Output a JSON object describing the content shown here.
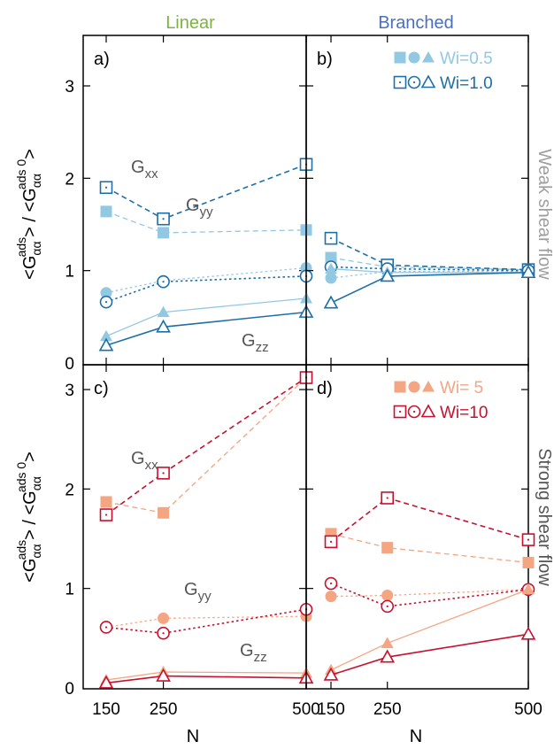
{
  "column_titles": [
    {
      "text": "Linear",
      "color": "#7cb342"
    },
    {
      "text": "Branched",
      "color": "#4a6fc1"
    }
  ],
  "row_titles": [
    {
      "text": "Weak shear flow",
      "color": "#9e9e9e"
    },
    {
      "text": "Strong shear flow",
      "color": "#555555"
    }
  ],
  "ylabel": {
    "main": "<G",
    "sup": "ads",
    "sub": "αα",
    "mid": "> / <G",
    "sup2": "ads 0",
    "sub2": "αα",
    "end": ">"
  },
  "xlabel": "N",
  "xticks": [
    150,
    250,
    500
  ],
  "yticks": [
    0,
    1,
    2,
    3
  ],
  "legends": [
    {
      "filled_label": "Wi=0.5",
      "open_label": "Wi=1.0"
    },
    {
      "filled_label": "Wi= 5",
      "open_label": "Wi=10"
    }
  ],
  "chart_data": [
    {
      "panel": "a)",
      "type": "line",
      "xlim": [
        100,
        550
      ],
      "ylim": [
        0,
        3.5
      ],
      "x": [
        150,
        250,
        500
      ],
      "annotations": [
        {
          "text": "G",
          "sub": "xx"
        },
        {
          "text": "G",
          "sub": "yy"
        },
        {
          "text": "G",
          "sub": "zz"
        }
      ],
      "series": [
        {
          "label": "Wi=0.5",
          "component": "xx",
          "style": "filled",
          "color": "#93c8e2",
          "values": [
            1.64,
            1.41,
            1.44
          ]
        },
        {
          "label": "Wi=1.0",
          "component": "xx",
          "style": "open",
          "color": "#1e6fa8",
          "values": [
            1.9,
            1.56,
            2.15
          ]
        },
        {
          "label": "Wi=0.5",
          "component": "yy",
          "style": "filled",
          "color": "#93c8e2",
          "values": [
            0.76,
            0.89,
            1.03
          ]
        },
        {
          "label": "Wi=1.0",
          "component": "yy",
          "style": "open",
          "color": "#1e6fa8",
          "values": [
            0.66,
            0.88,
            0.94
          ]
        },
        {
          "label": "Wi=0.5",
          "component": "zz",
          "style": "filled",
          "color": "#93c8e2",
          "values": [
            0.29,
            0.55,
            0.7
          ]
        },
        {
          "label": "Wi=1.0",
          "component": "zz",
          "style": "open",
          "color": "#1e6fa8",
          "values": [
            0.19,
            0.39,
            0.55
          ]
        }
      ]
    },
    {
      "panel": "b)",
      "type": "line",
      "xlim": [
        100,
        550
      ],
      "ylim": [
        0,
        3.5
      ],
      "x": [
        150,
        250,
        500
      ],
      "series": [
        {
          "label": "Wi=0.5",
          "component": "xx",
          "style": "filled",
          "color": "#93c8e2",
          "values": [
            1.14,
            1.04,
            1.01
          ]
        },
        {
          "label": "Wi=1.0",
          "component": "xx",
          "style": "open",
          "color": "#1e6fa8",
          "values": [
            1.35,
            1.06,
            1.01
          ]
        },
        {
          "label": "Wi=0.5",
          "component": "yy",
          "style": "filled",
          "color": "#93c8e2",
          "values": [
            0.92,
            0.99,
            0.99
          ]
        },
        {
          "label": "Wi=1.0",
          "component": "yy",
          "style": "open",
          "color": "#1e6fa8",
          "values": [
            1.04,
            1.02,
            1.0
          ]
        },
        {
          "label": "Wi=0.5",
          "component": "zz",
          "style": "filled",
          "color": "#93c8e2",
          "values": [
            1.02,
            0.98,
            0.98
          ]
        },
        {
          "label": "Wi=1.0",
          "component": "zz",
          "style": "open",
          "color": "#1e6fa8",
          "values": [
            0.65,
            0.94,
            0.98
          ]
        }
      ]
    },
    {
      "panel": "c)",
      "type": "line",
      "xlim": [
        100,
        550
      ],
      "ylim": [
        0,
        3.5
      ],
      "x": [
        150,
        250,
        500
      ],
      "annotations": [
        {
          "text": "G",
          "sub": "xx"
        },
        {
          "text": "G",
          "sub": "yy"
        },
        {
          "text": "G",
          "sub": "zz"
        }
      ],
      "series": [
        {
          "label": "Wi= 5",
          "component": "xx",
          "style": "filled",
          "color": "#f4a582",
          "values": [
            1.87,
            1.76,
            3.12
          ]
        },
        {
          "label": "Wi=10",
          "component": "xx",
          "style": "open",
          "color": "#c8102e",
          "values": [
            1.74,
            2.16,
            3.12
          ]
        },
        {
          "label": "Wi= 5",
          "component": "yy",
          "style": "filled",
          "color": "#f4a582",
          "values": [
            0.61,
            0.7,
            0.72
          ]
        },
        {
          "label": "Wi=10",
          "component": "yy",
          "style": "open",
          "color": "#c8102e",
          "values": [
            0.61,
            0.55,
            0.79
          ]
        },
        {
          "label": "Wi= 5",
          "component": "zz",
          "style": "filled",
          "color": "#f4a582",
          "values": [
            0.08,
            0.16,
            0.15
          ]
        },
        {
          "label": "Wi=10",
          "component": "zz",
          "style": "open",
          "color": "#c8102e",
          "values": [
            0.05,
            0.12,
            0.1
          ]
        }
      ]
    },
    {
      "panel": "d)",
      "type": "line",
      "xlim": [
        100,
        550
      ],
      "ylim": [
        0,
        3.5
      ],
      "x": [
        150,
        250,
        500
      ],
      "series": [
        {
          "label": "Wi= 5",
          "component": "xx",
          "style": "filled",
          "color": "#f4a582",
          "values": [
            1.55,
            1.41,
            1.26
          ]
        },
        {
          "label": "Wi=10",
          "component": "xx",
          "style": "open",
          "color": "#c8102e",
          "values": [
            1.47,
            1.91,
            1.49
          ]
        },
        {
          "label": "Wi= 5",
          "component": "yy",
          "style": "filled",
          "color": "#f4a582",
          "values": [
            0.92,
            0.93,
            0.99
          ]
        },
        {
          "label": "Wi=10",
          "component": "yy",
          "style": "open",
          "color": "#c8102e",
          "values": [
            1.05,
            0.82,
            0.99
          ]
        },
        {
          "label": "Wi= 5",
          "component": "zz",
          "style": "filled",
          "color": "#f4a582",
          "values": [
            0.18,
            0.45,
            0.99
          ]
        },
        {
          "label": "Wi=10",
          "component": "zz",
          "style": "open",
          "color": "#c8102e",
          "values": [
            0.13,
            0.31,
            0.54
          ]
        }
      ]
    }
  ]
}
